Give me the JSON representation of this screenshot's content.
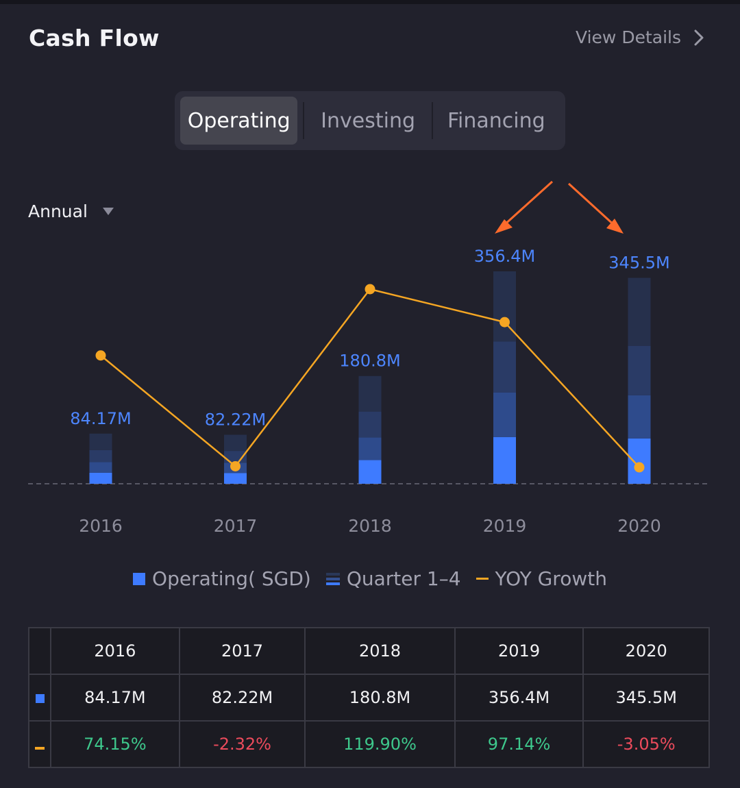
{
  "header": {
    "title": "Cash Flow",
    "view_details": "View Details"
  },
  "tabs": [
    {
      "label": "Operating",
      "active": true
    },
    {
      "label": "Investing",
      "active": false
    },
    {
      "label": "Financing",
      "active": false
    }
  ],
  "period_select": {
    "value": "Annual"
  },
  "chart_data": {
    "type": "bar",
    "categories": [
      "2016",
      "2017",
      "2018",
      "2019",
      "2020"
    ],
    "series": [
      {
        "name": "Operating( SGD)",
        "values": [
          84.17,
          82.22,
          180.8,
          356.4,
          345.5
        ],
        "labels": [
          "84.17M",
          "82.22M",
          "180.8M",
          "356.4M",
          "345.5M"
        ],
        "color": "#3e7bff"
      },
      {
        "name": "YOY Growth",
        "values": [
          74.15,
          -2.32,
          119.9,
          97.14,
          -3.05
        ],
        "color": "#f5a623"
      }
    ],
    "quarters_label": "Quarter 1–4",
    "ylim": [
      0,
      360
    ]
  },
  "legend": {
    "operating": "Operating( SGD)",
    "quarters": "Quarter 1–4",
    "yoy": "YOY Growth"
  },
  "table": {
    "years": [
      "2016",
      "2017",
      "2018",
      "2019",
      "2020"
    ],
    "values": [
      "84.17M",
      "82.22M",
      "180.8M",
      "356.4M",
      "345.5M"
    ],
    "growth": [
      "74.15%",
      "-2.32%",
      "119.90%",
      "97.14%",
      "-3.05%"
    ]
  },
  "colors": {
    "accent_blue": "#3e7bff",
    "growth_orange": "#f5a623",
    "positive": "#3ec88c",
    "negative": "#ec4b5c",
    "annotation_arrow": "#ff6b2c"
  }
}
